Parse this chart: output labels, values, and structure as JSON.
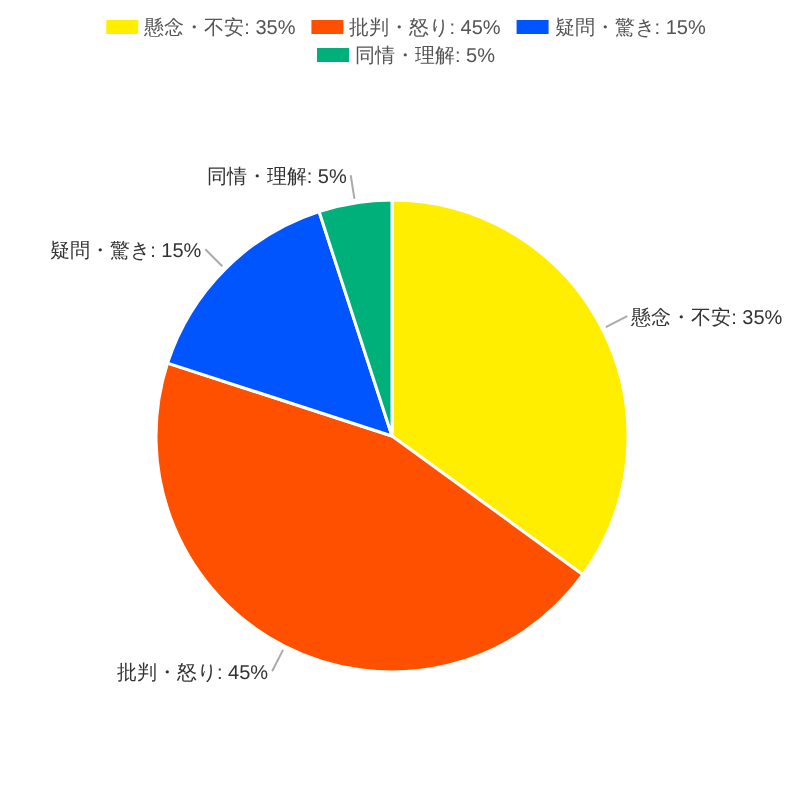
{
  "chart_data": {
    "type": "pie",
    "categories": [
      "懸念・不安: 35%",
      "批判・怒り: 45%",
      "疑問・驚き: 15%",
      "同情・理解: 5%"
    ],
    "values": [
      35,
      45,
      15,
      5
    ],
    "colors": [
      "#ffee00",
      "#ff5000",
      "#0055ff",
      "#00b07a"
    ],
    "legend": "top"
  }
}
